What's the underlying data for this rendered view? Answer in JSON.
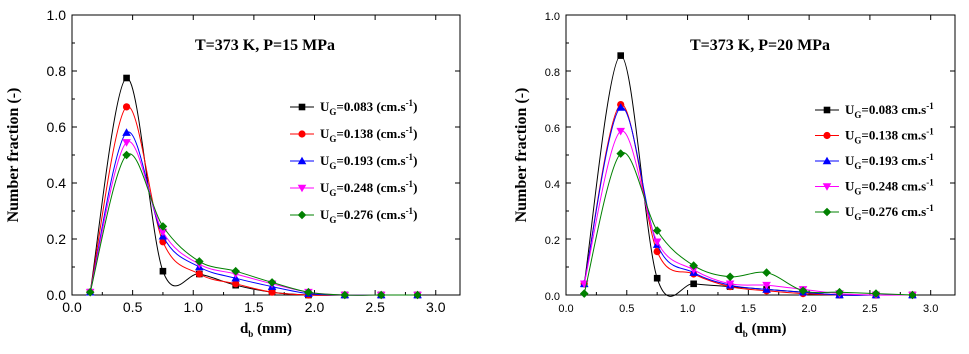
{
  "chart_data": [
    {
      "type": "line",
      "annotation": "T=373 K, P=15 MPa",
      "xlabel": {
        "main": "d",
        "sub": "b",
        "unit": " (mm)"
      },
      "ylabel": "Number fraction (-)",
      "xlim": [
        0.0,
        3.2
      ],
      "ylim": [
        0.0,
        1.0
      ],
      "xticks": [
        "0.0",
        "0.5",
        "1.0",
        "1.5",
        "2.0",
        "2.5",
        "3.0"
      ],
      "yticks": [
        "0.0",
        "0.2",
        "0.4",
        "0.6",
        "0.8",
        "1.0"
      ],
      "legend_position": "right",
      "x": [
        0.15,
        0.45,
        0.75,
        1.05,
        1.35,
        1.65,
        1.95,
        2.25,
        2.55,
        2.85
      ],
      "series": [
        {
          "legend": {
            "pre": "U",
            "sub": "G",
            "mid": "=0.083 (cm.s",
            "sup": "-1",
            "post": ")"
          },
          "color": "#000000",
          "marker": "square",
          "values": [
            0.01,
            0.775,
            0.085,
            0.075,
            0.035,
            0.01,
            0.0,
            0.0,
            0.0,
            0.0
          ]
        },
        {
          "legend": {
            "pre": "U",
            "sub": "G",
            "mid": "=0.138 (cm.s",
            "sup": "-1",
            "post": ")"
          },
          "color": "#ff0000",
          "marker": "circle",
          "values": [
            0.01,
            0.672,
            0.19,
            0.075,
            0.04,
            0.01,
            0.0,
            0.0,
            0.0,
            0.0
          ]
        },
        {
          "legend": {
            "pre": "U",
            "sub": "G",
            "mid": "=0.193 (cm.s",
            "sup": "-1",
            "post": ")"
          },
          "color": "#0000ff",
          "marker": "triangle-up",
          "values": [
            0.01,
            0.58,
            0.21,
            0.1,
            0.06,
            0.03,
            0.005,
            0.0,
            0.0,
            0.0
          ]
        },
        {
          "legend": {
            "pre": "U",
            "sub": "G",
            "mid": "=0.248 (cm.s",
            "sup": "-1",
            "post": ")"
          },
          "color": "#ff00ff",
          "marker": "triangle-down",
          "values": [
            0.01,
            0.545,
            0.225,
            0.11,
            0.075,
            0.04,
            0.01,
            0.0,
            0.0,
            0.0
          ]
        },
        {
          "legend": {
            "pre": "U",
            "sub": "G",
            "mid": "=0.276 (cm.s",
            "sup": "-1",
            "post": ")"
          },
          "color": "#008000",
          "marker": "diamond",
          "values": [
            0.01,
            0.5,
            0.245,
            0.12,
            0.085,
            0.045,
            0.01,
            0.0,
            0.0,
            0.0
          ]
        }
      ]
    },
    {
      "type": "line",
      "annotation": "T=373 K, P=20 MPa",
      "xlabel": {
        "main": "d",
        "sub": "b",
        "unit": " (mm)"
      },
      "ylabel": "Number fraction (-)",
      "xlim": [
        0.0,
        3.2
      ],
      "ylim": [
        0.0,
        1.0
      ],
      "xticks": [
        "0.0",
        "0.5",
        "1.0",
        "1.5",
        "2.0",
        "2.5",
        "3.0"
      ],
      "yticks": [
        "0.0",
        "0.2",
        "0.4",
        "0.6",
        "0.8",
        "1.0"
      ],
      "legend_position": "right",
      "x": [
        0.15,
        0.45,
        0.75,
        1.05,
        1.35,
        1.65,
        1.95,
        2.25,
        2.55,
        2.85
      ],
      "series": [
        {
          "legend": {
            "pre": "U",
            "sub": "G",
            "mid": "=0.083 cm.s",
            "sup": "-1",
            "post": ""
          },
          "color": "#000000",
          "marker": "square",
          "values": [
            0.04,
            0.855,
            0.06,
            0.04,
            0.03,
            0.02,
            0.01,
            0.0,
            0.0,
            0.0
          ]
        },
        {
          "legend": {
            "pre": "U",
            "sub": "G",
            "mid": "=0.138 cm.s",
            "sup": "-1",
            "post": ""
          },
          "color": "#ff0000",
          "marker": "circle",
          "values": [
            0.04,
            0.68,
            0.155,
            0.075,
            0.03,
            0.015,
            0.005,
            0.0,
            0.0,
            0.0
          ]
        },
        {
          "legend": {
            "pre": "U",
            "sub": "G",
            "mid": "=0.193 cm.s",
            "sup": "-1",
            "post": ""
          },
          "color": "#0000ff",
          "marker": "triangle-up",
          "values": [
            0.04,
            0.67,
            0.18,
            0.08,
            0.035,
            0.02,
            0.01,
            0.0,
            0.0,
            0.0
          ]
        },
        {
          "legend": {
            "pre": "U",
            "sub": "G",
            "mid": "=0.248 cm.s",
            "sup": "-1",
            "post": ""
          },
          "color": "#ff00ff",
          "marker": "triangle-down",
          "values": [
            0.04,
            0.585,
            0.19,
            0.09,
            0.04,
            0.035,
            0.02,
            0.005,
            0.0,
            0.0
          ]
        },
        {
          "legend": {
            "pre": "U",
            "sub": "G",
            "mid": "=0.276 cm.s",
            "sup": "-1",
            "post": ""
          },
          "color": "#008000",
          "marker": "diamond",
          "values": [
            0.005,
            0.505,
            0.23,
            0.105,
            0.065,
            0.08,
            0.015,
            0.01,
            0.005,
            0.0
          ]
        }
      ]
    }
  ]
}
